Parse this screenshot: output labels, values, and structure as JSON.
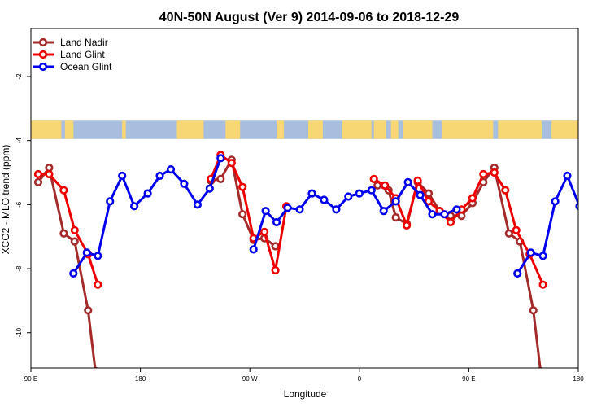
{
  "chart_data": {
    "type": "line",
    "title": "40N-50N August (Ver 9)   2014-09-06 to 2018-12-29",
    "xlabel": "Longitude",
    "ylabel": "XCO2 - MLO trend (ppm)",
    "xlim": [
      90,
      540
    ],
    "ylim": [
      -11.1,
      -0.5
    ],
    "x_ticks": [
      {
        "value": 90,
        "label": "90 E"
      },
      {
        "value": 180,
        "label": "180"
      },
      {
        "value": 270,
        "label": "90 W"
      },
      {
        "value": 360,
        "label": "0"
      },
      {
        "value": 450,
        "label": "90 E"
      },
      {
        "value": 540,
        "label": "180"
      }
    ],
    "y_ticks": [
      {
        "value": -2,
        "label": "-2"
      },
      {
        "value": -4,
        "label": "-4"
      },
      {
        "value": -6,
        "label": "-6"
      },
      {
        "value": -8,
        "label": "-8"
      },
      {
        "value": -10,
        "label": "-10"
      }
    ],
    "legend_position": "top-left",
    "grid": false,
    "map_strip": {
      "y_top": -3.38,
      "y_bottom": -3.95,
      "land_color": "#f7d774",
      "ocean_color": "#a7bede"
    },
    "series": [
      {
        "name": "Land Nadir",
        "color": "#a52a2a",
        "points": [
          [
            96,
            -5.3
          ],
          [
            105,
            -4.85
          ],
          [
            117,
            -6.9
          ],
          [
            126,
            -7.15
          ],
          [
            137,
            -9.3
          ],
          [
            143,
            -11.2
          ],
          null,
          [
            375,
            -5.4
          ],
          [
            384,
            -5.55
          ],
          [
            390,
            -6.4
          ],
          [
            399,
            -6.6
          ],
          [
            408,
            -5.3
          ],
          [
            417,
            -5.65
          ],
          [
            426,
            -6.2
          ],
          [
            435,
            -6.35
          ],
          [
            444,
            -6.35
          ],
          [
            453,
            -5.95
          ],
          [
            462,
            -5.3
          ],
          [
            471,
            -4.85
          ],
          [
            483,
            -6.9
          ],
          [
            492,
            -7.15
          ],
          [
            503,
            -9.3
          ],
          [
            509,
            -11.2
          ],
          null,
          [
            238,
            -5.25
          ],
          [
            246,
            -5.2
          ],
          [
            255,
            -4.6
          ],
          [
            264,
            -6.3
          ],
          [
            273,
            -7.1
          ],
          [
            282,
            -7.05
          ],
          [
            291,
            -7.3
          ]
        ]
      },
      {
        "name": "Land Glint",
        "color": "#ee0000",
        "points": [
          [
            96,
            -5.05
          ],
          [
            105,
            -5.05
          ],
          [
            117,
            -5.55
          ],
          [
            126,
            -6.8
          ],
          [
            137,
            -7.55
          ],
          [
            145,
            -8.5
          ],
          null,
          [
            238,
            -5.2
          ],
          [
            246,
            -4.45
          ],
          [
            255,
            -4.7
          ],
          [
            264,
            -5.45
          ],
          [
            273,
            -7.05
          ],
          [
            282,
            -6.85
          ],
          [
            291,
            -8.05
          ],
          [
            300,
            -6.05
          ],
          null,
          [
            372,
            -5.2
          ],
          [
            381,
            -5.4
          ],
          [
            390,
            -5.8
          ],
          [
            399,
            -6.65
          ],
          [
            408,
            -5.25
          ],
          [
            417,
            -5.9
          ],
          [
            426,
            -6.2
          ],
          [
            435,
            -6.55
          ],
          [
            444,
            -6.15
          ],
          [
            453,
            -5.8
          ],
          [
            462,
            -5.05
          ],
          [
            471,
            -5
          ],
          [
            480,
            -5.55
          ],
          [
            489,
            -6.8
          ],
          [
            500,
            -7.55
          ],
          [
            511,
            -8.5
          ]
        ]
      },
      {
        "name": "Ocean Glint",
        "color": "#0000ee",
        "points": [
          [
            125,
            -8.15
          ],
          [
            136,
            -7.5
          ],
          [
            145,
            -7.6
          ],
          [
            155,
            -5.9
          ],
          [
            165,
            -5.1
          ],
          [
            175,
            -6.05
          ],
          [
            186,
            -5.65
          ],
          [
            196,
            -5.1
          ],
          [
            205,
            -4.9
          ],
          [
            216,
            -5.35
          ],
          [
            227,
            -6
          ],
          [
            237,
            -5.5
          ],
          [
            246,
            -4.55
          ],
          null,
          [
            273,
            -7.4
          ],
          [
            283,
            -6.2
          ],
          [
            292,
            -6.55
          ],
          [
            301,
            -6.1
          ],
          [
            311,
            -6.15
          ],
          [
            321,
            -5.65
          ],
          [
            331,
            -5.85
          ],
          [
            341,
            -6.15
          ],
          [
            351,
            -5.75
          ],
          [
            360,
            -5.65
          ],
          [
            370,
            -5.55
          ],
          [
            380,
            -6.2
          ],
          [
            390,
            -5.9
          ],
          [
            400,
            -5.3
          ],
          [
            410,
            -5.7
          ],
          [
            420,
            -6.3
          ],
          [
            430,
            -6.3
          ],
          [
            440,
            -6.15
          ],
          null,
          [
            490,
            -8.15
          ],
          [
            501,
            -7.5
          ],
          [
            511,
            -7.6
          ],
          [
            521,
            -5.9
          ],
          [
            531,
            -5.1
          ],
          [
            541,
            -6.05
          ]
        ]
      }
    ]
  }
}
